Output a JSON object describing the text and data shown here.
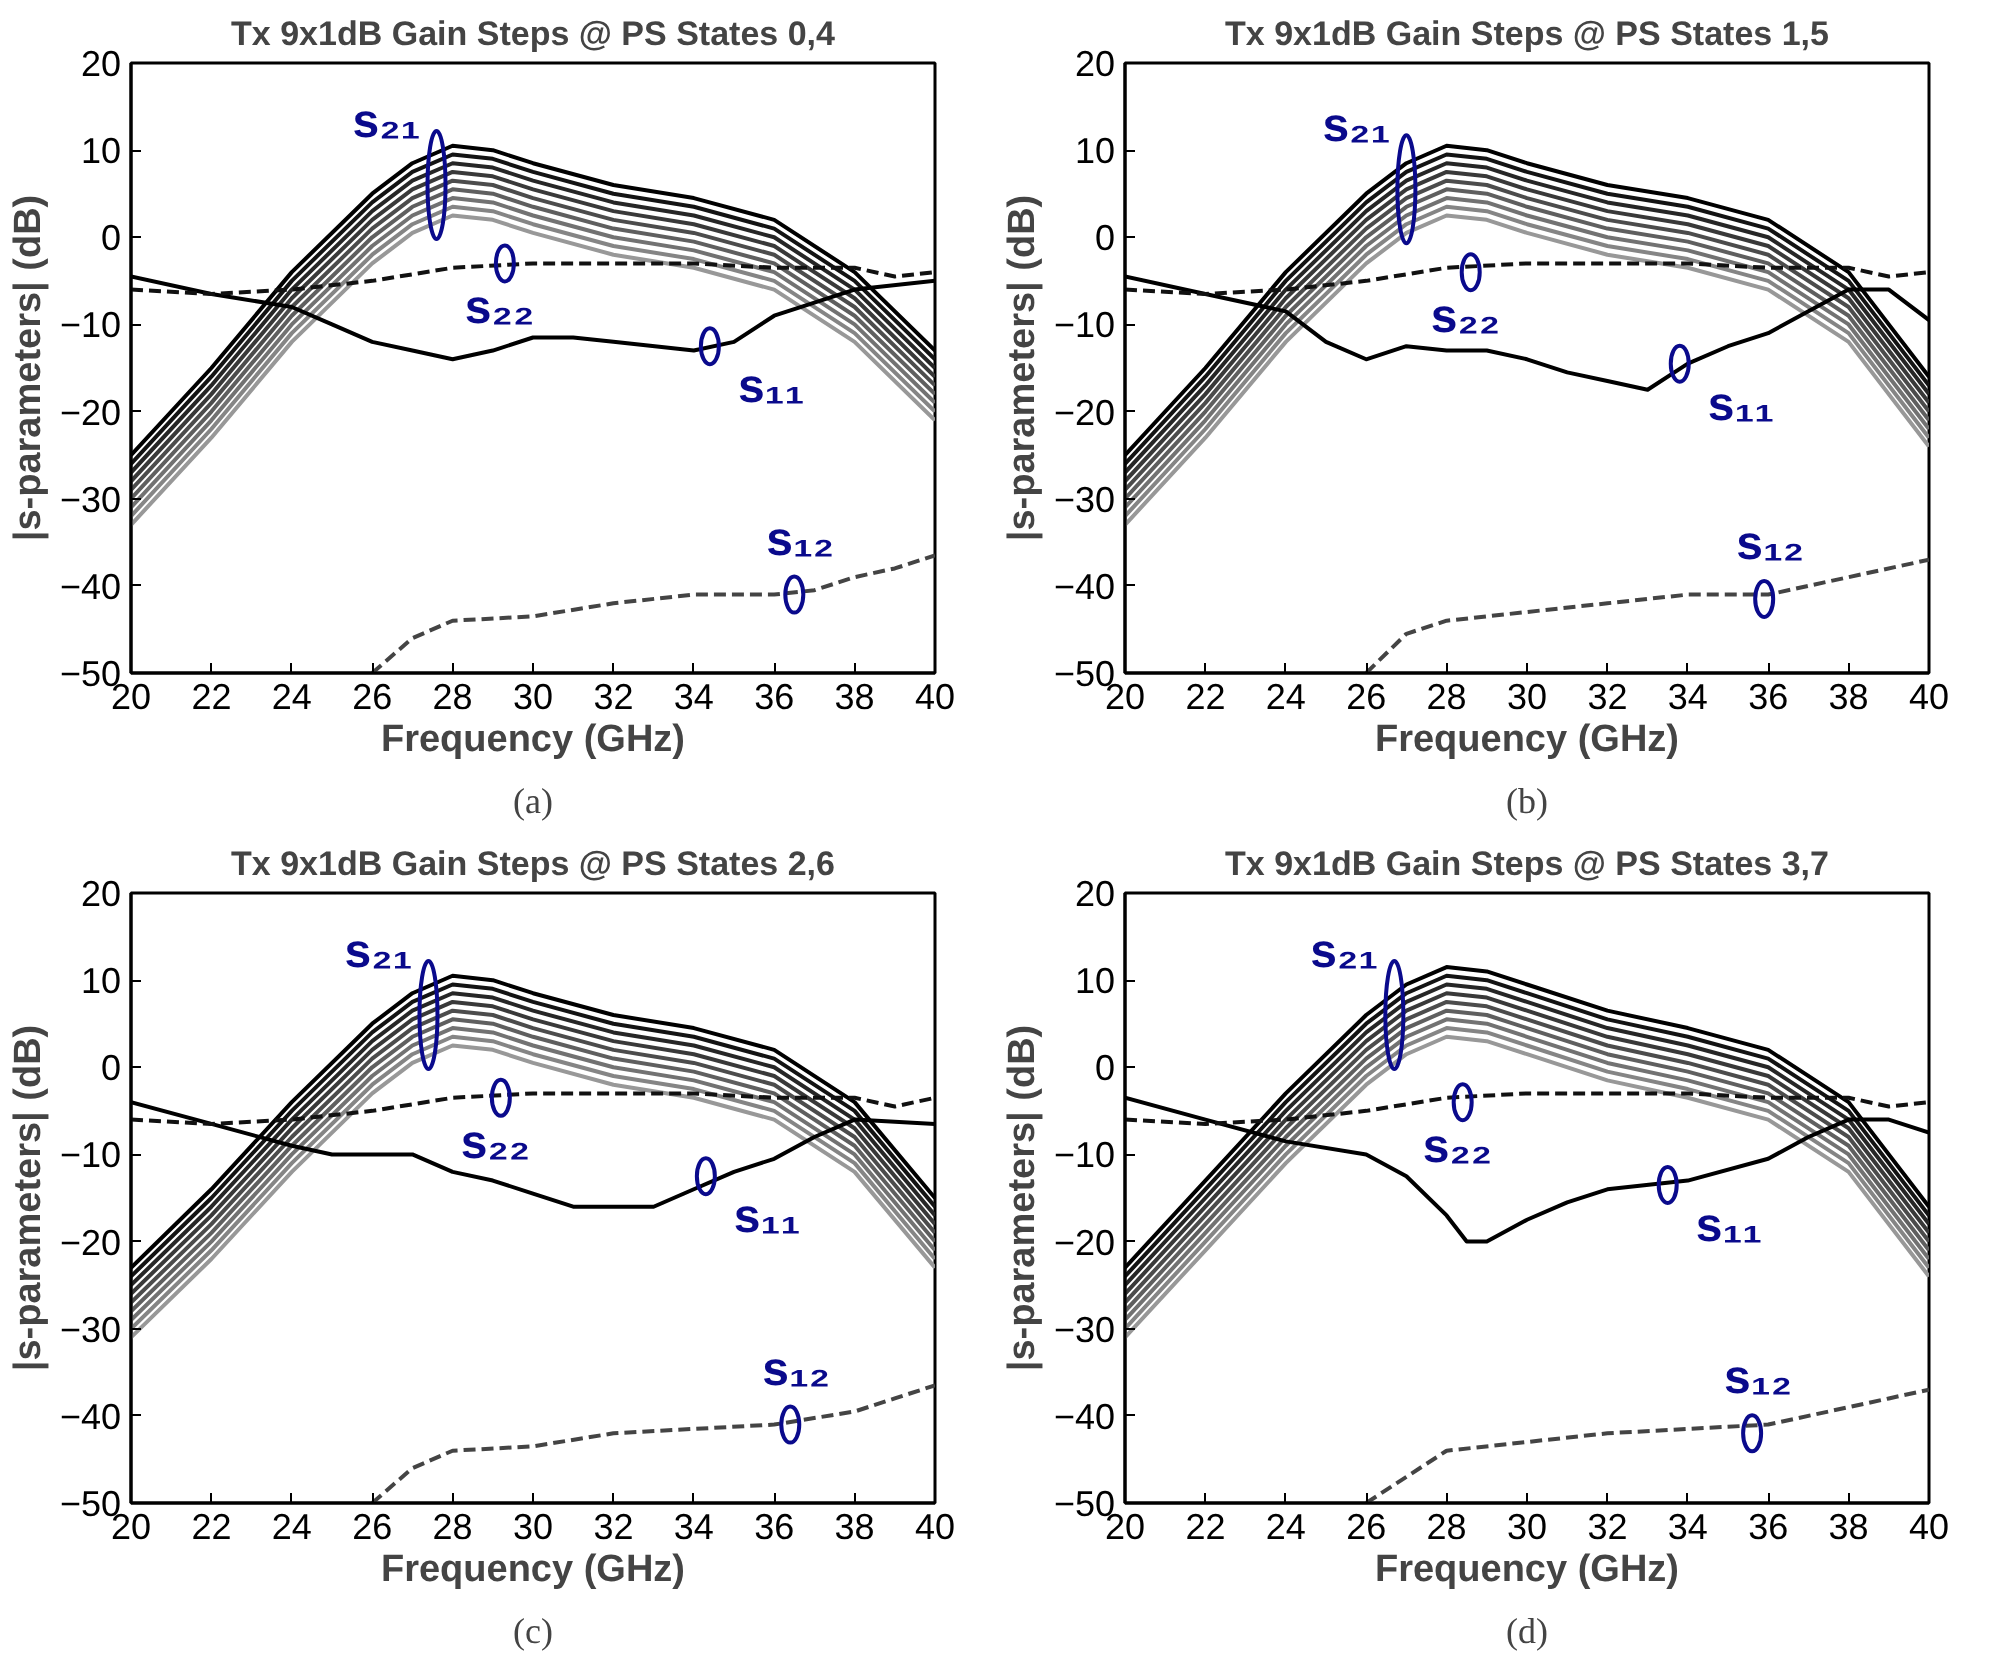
{
  "chart_data": [
    {
      "type": "line",
      "title": "Tx 9x1dB Gain Steps @ PS States 0,4",
      "xlabel": "Frequency (GHz)",
      "ylabel": "|s-parameters| (dB)",
      "xlim": [
        20,
        40
      ],
      "ylim": [
        -50,
        20
      ],
      "xticks": [
        20,
        22,
        24,
        26,
        28,
        30,
        32,
        34,
        36,
        38,
        40
      ],
      "yticks": [
        -50,
        -40,
        -30,
        -20,
        -10,
        0,
        10,
        20
      ],
      "x": [
        20,
        22,
        24,
        26,
        27,
        28,
        29,
        30,
        32,
        34,
        36,
        38,
        40
      ],
      "series": [
        {
          "color": "#000000",
          "values": [
            -25,
            -15,
            -4,
            5,
            8.5,
            10.5,
            10,
            8.5,
            6,
            4.5,
            2,
            -4,
            -13
          ]
        },
        {
          "color": "#131313",
          "values": [
            -26,
            -16,
            -5,
            4,
            7.5,
            9.5,
            9,
            7.5,
            5,
            3.5,
            1,
            -5,
            -14
          ]
        },
        {
          "color": "#262626",
          "values": [
            -27,
            -17,
            -6,
            3,
            6.5,
            8.5,
            8,
            6.5,
            4,
            2.5,
            0,
            -6,
            -15
          ]
        },
        {
          "color": "#393939",
          "values": [
            -28,
            -18,
            -7,
            2,
            5.5,
            7.5,
            7,
            5.5,
            3,
            1.5,
            -1,
            -7,
            -16
          ]
        },
        {
          "color": "#4c4c4c",
          "values": [
            -29,
            -19,
            -8,
            1,
            4.5,
            6.5,
            6,
            4.5,
            2,
            0.5,
            -2,
            -8,
            -17
          ]
        },
        {
          "color": "#5f5f5f",
          "values": [
            -30,
            -20,
            -9,
            0,
            3.5,
            5.5,
            5,
            3.5,
            1,
            -0.5,
            -3,
            -9,
            -18
          ]
        },
        {
          "color": "#727272",
          "values": [
            -31,
            -21,
            -10,
            -1,
            2.5,
            4.5,
            4,
            2.5,
            0,
            -1.5,
            -4,
            -10,
            -19
          ]
        },
        {
          "color": "#858585",
          "values": [
            -32,
            -22,
            -11,
            -2,
            1.5,
            3.5,
            3,
            1.5,
            -1,
            -2.5,
            -5,
            -11,
            -20
          ]
        },
        {
          "color": "#989898",
          "values": [
            -33,
            -23,
            -12,
            -3,
            0.5,
            2.5,
            2,
            0.5,
            -2,
            -3.5,
            -6,
            -12,
            -21
          ]
        },
        {
          "color": "#000000",
          "x": [
            20,
            22,
            24,
            25,
            26,
            27,
            28,
            29,
            30,
            31,
            32,
            34,
            35,
            36,
            37,
            38,
            40
          ],
          "values": [
            -4.5,
            -6.5,
            -8,
            -10,
            -12,
            -13,
            -14,
            -13,
            -11.5,
            -11.5,
            -12,
            -13,
            -12,
            -9,
            -7.5,
            -6,
            -5
          ]
        },
        {
          "color": "#111111",
          "line_style": "dashed",
          "x": [
            20,
            22,
            24,
            26,
            28,
            30,
            32,
            34,
            36,
            38,
            39,
            40
          ],
          "values": [
            -6,
            -6.5,
            -6,
            -5,
            -3.5,
            -3,
            -3,
            -3,
            -3.5,
            -3.5,
            -4.5,
            -4
          ]
        },
        {
          "color": "#444444",
          "line_style": "dashed",
          "x": [
            26,
            27,
            28,
            30,
            32,
            34,
            36,
            37,
            38,
            39,
            40
          ],
          "values": [
            -50,
            -46,
            -44,
            -43.5,
            -42,
            -41,
            -41,
            -40.5,
            -39,
            -38,
            -36.5
          ]
        }
      ],
      "annotations": [
        {
          "text": "s₂₁",
          "x": 27.6,
          "y": 6
        },
        {
          "text": "s₂₂",
          "x": 29.3,
          "y": -3
        },
        {
          "text": "s₁₁",
          "x": 34.4,
          "y": -12.5
        },
        {
          "text": "s₁₂",
          "x": 36.5,
          "y": -41
        },
        "(a)"
      ]
    },
    {
      "type": "line",
      "title": "Tx 9x1dB Gain Steps @ PS States 1,5",
      "xlabel": "Frequency (GHz)",
      "ylabel": "|s-parameters| (dB)",
      "xlim": [
        20,
        40
      ],
      "ylim": [
        -50,
        20
      ],
      "xticks": [
        20,
        22,
        24,
        26,
        28,
        30,
        32,
        34,
        36,
        38,
        40
      ],
      "yticks": [
        -50,
        -40,
        -30,
        -20,
        -10,
        0,
        10,
        20
      ],
      "x": [
        20,
        22,
        24,
        26,
        27,
        28,
        29,
        30,
        32,
        34,
        36,
        38,
        40
      ],
      "series": [
        {
          "color": "#000000",
          "values": [
            -25,
            -15,
            -4,
            5,
            8.5,
            10.5,
            10,
            8.5,
            6,
            4.5,
            2,
            -4,
            -16
          ]
        },
        {
          "color": "#131313",
          "values": [
            -26,
            -16,
            -5,
            4,
            7.5,
            9.5,
            9,
            7.5,
            5,
            3.5,
            1,
            -5,
            -17
          ]
        },
        {
          "color": "#262626",
          "values": [
            -27,
            -17,
            -6,
            3,
            6.5,
            8.5,
            8,
            6.5,
            4,
            2.5,
            0,
            -6,
            -18
          ]
        },
        {
          "color": "#393939",
          "values": [
            -28,
            -18,
            -7,
            2,
            5.5,
            7.5,
            7,
            5.5,
            3,
            1.5,
            -1,
            -7,
            -19
          ]
        },
        {
          "color": "#4c4c4c",
          "values": [
            -29,
            -19,
            -8,
            1,
            4.5,
            6.5,
            6,
            4.5,
            2,
            0.5,
            -2,
            -8,
            -20
          ]
        },
        {
          "color": "#5f5f5f",
          "values": [
            -30,
            -20,
            -9,
            0,
            3.5,
            5.5,
            5,
            3.5,
            1,
            -0.5,
            -3,
            -9,
            -21
          ]
        },
        {
          "color": "#727272",
          "values": [
            -31,
            -21,
            -10,
            -1,
            2.5,
            4.5,
            4,
            2.5,
            0,
            -1.5,
            -4,
            -10,
            -22
          ]
        },
        {
          "color": "#858585",
          "values": [
            -32,
            -22,
            -11,
            -2,
            1.5,
            3.5,
            3,
            1.5,
            -1,
            -2.5,
            -5,
            -11,
            -23
          ]
        },
        {
          "color": "#989898",
          "values": [
            -33,
            -23,
            -12,
            -3,
            0.5,
            2.5,
            2,
            0.5,
            -2,
            -3.5,
            -6,
            -12,
            -24
          ]
        },
        {
          "color": "#000000",
          "x": [
            20,
            22,
            24,
            25,
            26,
            27,
            28,
            29,
            30,
            31,
            32,
            33,
            34,
            35,
            36,
            37,
            38,
            39,
            40
          ],
          "values": [
            -4.5,
            -6.5,
            -8.5,
            -12,
            -14,
            -12.5,
            -13,
            -13,
            -14,
            -15.5,
            -16.5,
            -17.5,
            -14.5,
            -12.5,
            -11,
            -8.5,
            -6,
            -6,
            -9.5
          ]
        },
        {
          "color": "#111111",
          "line_style": "dashed",
          "x": [
            20,
            22,
            24,
            26,
            28,
            30,
            32,
            34,
            36,
            38,
            39,
            40
          ],
          "values": [
            -6,
            -6.5,
            -6,
            -5,
            -3.5,
            -3,
            -3,
            -3,
            -3.5,
            -3.5,
            -4.5,
            -4
          ]
        },
        {
          "color": "#444444",
          "line_style": "dashed",
          "x": [
            26,
            27,
            28,
            30,
            32,
            34,
            36,
            38,
            40
          ],
          "values": [
            -50,
            -45.5,
            -44,
            -43,
            -42,
            -41,
            -41,
            -39,
            -37
          ]
        }
      ],
      "annotations": [
        {
          "text": "s₂₁",
          "x": 27,
          "y": 5.5
        },
        {
          "text": "s₂₂",
          "x": 28.6,
          "y": -4
        },
        {
          "text": "s₁₁",
          "x": 33.8,
          "y": -14.5
        },
        {
          "text": "s₁₂",
          "x": 35.9,
          "y": -41.5
        },
        "(b)"
      ]
    },
    {
      "type": "line",
      "title": "Tx 9x1dB Gain Steps @ PS States 2,6",
      "xlabel": "Frequency (GHz)",
      "ylabel": "|s-parameters| (dB)",
      "xlim": [
        20,
        40
      ],
      "ylim": [
        -50,
        20
      ],
      "xticks": [
        20,
        22,
        24,
        26,
        28,
        30,
        32,
        34,
        36,
        38,
        40
      ],
      "yticks": [
        -50,
        -40,
        -30,
        -20,
        -10,
        0,
        10,
        20
      ],
      "x": [
        20,
        22,
        24,
        26,
        27,
        28,
        29,
        30,
        32,
        34,
        36,
        38,
        40
      ],
      "series": [
        {
          "color": "#000000",
          "values": [
            -23,
            -14,
            -4,
            5,
            8.5,
            10.5,
            10,
            8.5,
            6,
            4.5,
            2,
            -4,
            -15
          ]
        },
        {
          "color": "#131313",
          "values": [
            -24,
            -15,
            -5,
            4,
            7.5,
            9.5,
            9,
            7.5,
            5,
            3.5,
            1,
            -5,
            -16
          ]
        },
        {
          "color": "#262626",
          "values": [
            -25,
            -16,
            -6,
            3,
            6.5,
            8.5,
            8,
            6.5,
            4,
            2.5,
            0,
            -6,
            -17
          ]
        },
        {
          "color": "#393939",
          "values": [
            -26,
            -17,
            -7,
            2,
            5.5,
            7.5,
            7,
            5.5,
            3,
            1.5,
            -1,
            -7,
            -18
          ]
        },
        {
          "color": "#4c4c4c",
          "values": [
            -27,
            -18,
            -8,
            1,
            4.5,
            6.5,
            6,
            4.5,
            2,
            0.5,
            -2,
            -8,
            -19
          ]
        },
        {
          "color": "#5f5f5f",
          "values": [
            -28,
            -19,
            -9,
            0,
            3.5,
            5.5,
            5,
            3.5,
            1,
            -0.5,
            -3,
            -9,
            -20
          ]
        },
        {
          "color": "#727272",
          "values": [
            -29,
            -20,
            -10,
            -1,
            2.5,
            4.5,
            4,
            2.5,
            0,
            -1.5,
            -4,
            -10,
            -21
          ]
        },
        {
          "color": "#858585",
          "values": [
            -30,
            -21,
            -11,
            -2,
            1.5,
            3.5,
            3,
            1.5,
            -1,
            -2.5,
            -5,
            -11,
            -22
          ]
        },
        {
          "color": "#989898",
          "values": [
            -31,
            -22,
            -12,
            -3,
            0.5,
            2.5,
            2,
            0.5,
            -2,
            -3.5,
            -6,
            -12,
            -23
          ]
        },
        {
          "color": "#000000",
          "x": [
            20,
            22,
            24,
            25,
            26,
            27,
            28,
            29,
            30,
            31,
            32,
            33,
            34,
            35,
            36,
            37,
            38,
            40
          ],
          "values": [
            -4,
            -6.5,
            -9,
            -10,
            -10,
            -10,
            -12,
            -13,
            -14.5,
            -16,
            -16,
            -16,
            -14,
            -12,
            -10.5,
            -8,
            -6,
            -6.5
          ]
        },
        {
          "color": "#111111",
          "line_style": "dashed",
          "x": [
            20,
            22,
            24,
            26,
            28,
            30,
            34,
            36,
            38,
            39,
            40
          ],
          "values": [
            -6,
            -6.5,
            -6,
            -5,
            -3.5,
            -3,
            -3,
            -3.5,
            -3.5,
            -4.5,
            -3.5
          ]
        },
        {
          "color": "#444444",
          "line_style": "dashed",
          "x": [
            26,
            27,
            28,
            30,
            32,
            34,
            36,
            38,
            39,
            40
          ],
          "values": [
            -50,
            -46,
            -44,
            -43.5,
            -42,
            -41.5,
            -41,
            -39.5,
            -38,
            -36.5
          ]
        }
      ],
      "annotations": [
        {
          "text": "s₂₁",
          "x": 27.4,
          "y": 6
        },
        {
          "text": "s₂₂",
          "x": 29.2,
          "y": -3.5
        },
        {
          "text": "s₁₁",
          "x": 34.3,
          "y": -12.5
        },
        {
          "text": "s₁₂",
          "x": 36.4,
          "y": -41
        },
        "(c)"
      ]
    },
    {
      "type": "line",
      "title": "Tx 9x1dB Gain Steps @ PS States 3,7",
      "xlabel": "Frequency (GHz)",
      "ylabel": "|s-parameters| (dB)",
      "xlim": [
        20,
        40
      ],
      "ylim": [
        -50,
        20
      ],
      "xticks": [
        20,
        22,
        24,
        26,
        28,
        30,
        32,
        34,
        36,
        38,
        40
      ],
      "yticks": [
        -50,
        -40,
        -30,
        -20,
        -10,
        0,
        10,
        20
      ],
      "x": [
        20,
        22,
        24,
        26,
        27,
        28,
        29,
        30,
        32,
        34,
        36,
        38,
        40
      ],
      "series": [
        {
          "color": "#000000",
          "values": [
            -23,
            -13,
            -3,
            6,
            9.5,
            11.5,
            11,
            9.5,
            6.5,
            4.5,
            2,
            -4,
            -16
          ]
        },
        {
          "color": "#131313",
          "values": [
            -24,
            -14,
            -4,
            5,
            8.5,
            10.5,
            10,
            8.5,
            5.5,
            3.5,
            1,
            -5,
            -17
          ]
        },
        {
          "color": "#262626",
          "values": [
            -25,
            -15,
            -5,
            4,
            7.5,
            9.5,
            9,
            7.5,
            4.5,
            2.5,
            0,
            -6,
            -18
          ]
        },
        {
          "color": "#393939",
          "values": [
            -26,
            -16,
            -6,
            3,
            6.5,
            8.5,
            8,
            6.5,
            3.5,
            1.5,
            -1,
            -7,
            -19
          ]
        },
        {
          "color": "#4c4c4c",
          "values": [
            -27,
            -17,
            -7,
            2,
            5.5,
            7.5,
            7,
            5.5,
            2.5,
            0.5,
            -2,
            -8,
            -20
          ]
        },
        {
          "color": "#5f5f5f",
          "values": [
            -28,
            -18,
            -8,
            1,
            4.5,
            6.5,
            6,
            4.5,
            1.5,
            -0.5,
            -3,
            -9,
            -21
          ]
        },
        {
          "color": "#727272",
          "values": [
            -29,
            -19,
            -9,
            0,
            3.5,
            5.5,
            5,
            3.5,
            0.5,
            -1.5,
            -4,
            -10,
            -22
          ]
        },
        {
          "color": "#858585",
          "values": [
            -30,
            -20,
            -10,
            -1,
            2.5,
            4.5,
            4,
            2.5,
            -0.5,
            -2.5,
            -5,
            -11,
            -23
          ]
        },
        {
          "color": "#989898",
          "values": [
            -31,
            -21,
            -11,
            -2,
            1.5,
            3.5,
            3,
            1.5,
            -1.5,
            -3.5,
            -6,
            -12,
            -24
          ]
        },
        {
          "color": "#000000",
          "x": [
            20,
            22,
            24,
            26,
            27,
            28,
            28.5,
            29,
            30,
            31,
            32,
            34,
            36,
            37,
            38,
            39,
            40
          ],
          "values": [
            -3.5,
            -6,
            -8.5,
            -10,
            -12.5,
            -17,
            -20,
            -20,
            -17.5,
            -15.5,
            -14,
            -13,
            -10.5,
            -8,
            -6,
            -6,
            -7.5
          ]
        },
        {
          "color": "#111111",
          "line_style": "dashed",
          "x": [
            20,
            22,
            24,
            26,
            28,
            30,
            34,
            36,
            38,
            39,
            40
          ],
          "values": [
            -6,
            -6.5,
            -6,
            -5,
            -3.5,
            -3,
            -3,
            -3.5,
            -3.5,
            -4.5,
            -4
          ]
        },
        {
          "color": "#444444",
          "line_style": "dashed",
          "x": [
            26,
            27,
            28,
            30,
            32,
            34,
            36,
            38,
            39,
            40
          ],
          "values": [
            -50,
            -47,
            -44,
            -43,
            -42,
            -41.5,
            -41,
            -39,
            -38,
            -37
          ]
        }
      ],
      "annotations": [
        {
          "text": "s₂₁",
          "x": 26.7,
          "y": 6
        },
        {
          "text": "s₂₂",
          "x": 28.4,
          "y": -4
        },
        {
          "text": "s₁₁",
          "x": 33.5,
          "y": -13.5
        },
        {
          "text": "s₁₂",
          "x": 35.6,
          "y": -42
        },
        "(d)"
      ]
    }
  ]
}
